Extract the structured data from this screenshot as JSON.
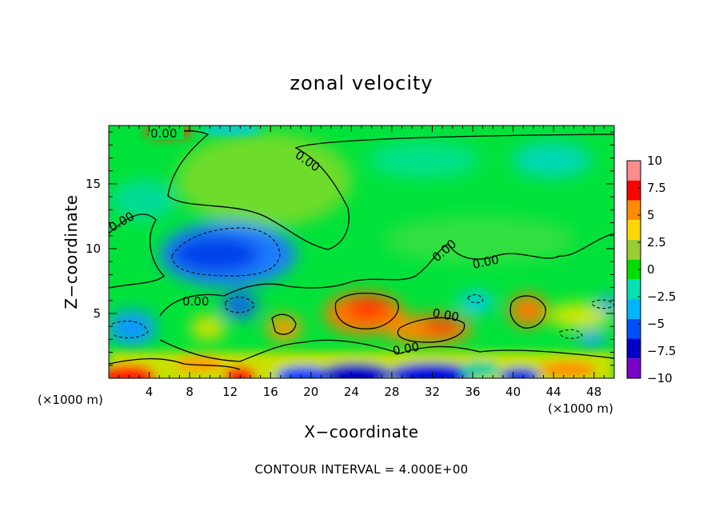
{
  "figure": {
    "title": "zonal velocity",
    "footer": "CONTOUR INTERVAL = 4.000E+00"
  },
  "chart_data": {
    "type": "heatmap",
    "title": "zonal velocity",
    "xlabel": "X−coordinate",
    "ylabel": "Z−coordinate",
    "x_unit_label": "(×1000 m)",
    "x_unit_label_right": "(×1000 m)",
    "xlim": [
      0,
      50
    ],
    "ylim": [
      0,
      19.5
    ],
    "x_ticks": [
      4,
      8,
      12,
      16,
      20,
      24,
      28,
      32,
      36,
      40,
      44,
      48
    ],
    "x_tick_labels": [
      "4",
      "8",
      "12",
      "16",
      "20",
      "24",
      "28",
      "32",
      "36",
      "40",
      "44",
      "48"
    ],
    "y_ticks": [
      5,
      10,
      15
    ],
    "y_tick_labels": [
      "5",
      "10",
      "15"
    ],
    "contour_interval": 4.0,
    "contour_label": "0.00",
    "colorbar": {
      "levels": [
        10,
        7.5,
        5,
        2.5,
        0,
        -2.5,
        -5,
        -7.5,
        -10
      ],
      "labels": [
        "10",
        "7.5",
        "5",
        "2.5",
        "0",
        "−2.5",
        "−5",
        "−7.5",
        "−10"
      ],
      "colors": [
        "#ff8c8c",
        "#ff0000",
        "#ff8c00",
        "#ffd700",
        "#9acd32",
        "#00dc00",
        "#00e0b0",
        "#00b4ff",
        "#0050ff",
        "#0000c8",
        "#7a00c8"
      ],
      "range": [
        -10,
        10
      ]
    },
    "features": [
      {
        "x": 12,
        "z": 9.9,
        "value": -7,
        "desc": "negative core"
      },
      {
        "x": 25,
        "z": 5.0,
        "value": 7,
        "desc": "positive core"
      },
      {
        "x": 32,
        "z": 4.0,
        "value": 8,
        "desc": "positive core"
      },
      {
        "x": 40.5,
        "z": 5.5,
        "value": 6,
        "desc": "positive core"
      },
      {
        "x": 20,
        "z": 15.0,
        "value": 1.5,
        "desc": "weak positive region"
      },
      {
        "x": 45,
        "z": 17.5,
        "value": -3,
        "desc": "weak negative region"
      }
    ]
  }
}
